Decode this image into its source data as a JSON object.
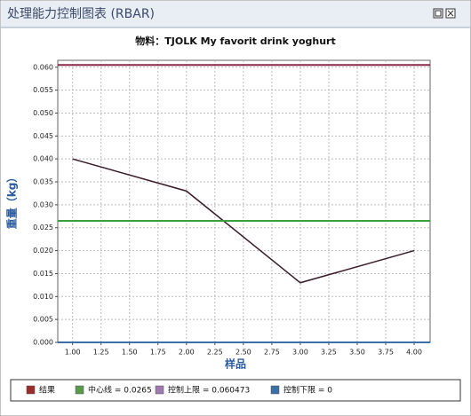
{
  "window_title": "处理能力控制图表 (RBAR)",
  "chart_data": {
    "type": "line",
    "title": "物料：TJOLK My favorit drink yoghurt",
    "x_label": "样品",
    "y_label": "重量（kg）",
    "x": [
      1,
      2,
      3,
      4
    ],
    "series": [
      {
        "name": "结果",
        "color": "#9b2c2c",
        "line_color": "#3a1a2a",
        "values": [
          0.04,
          0.033,
          0.013,
          0.02
        ]
      },
      {
        "name": "中心线 = 0.0265",
        "color": "#5a9a4a",
        "line_color": "#3aa03a",
        "value": 0.0265
      },
      {
        "name": "控制上限 = 0.060473",
        "color": "#a07ab0",
        "line_color": "#8a2a4a",
        "value": 0.060473
      },
      {
        "name": "控制下限 = 0",
        "color": "#3a6fa8",
        "line_color": "#3a6fa8",
        "value": 0
      }
    ],
    "xlim": [
      0.87,
      4.14
    ],
    "ylim": [
      0,
      0.0615
    ],
    "xticks": [
      {
        "value": 1,
        "label": "1.00"
      },
      {
        "value": 1.25,
        "label": "1.25"
      },
      {
        "value": 1.5,
        "label": "1.50"
      },
      {
        "value": 1.75,
        "label": "1.75"
      },
      {
        "value": 2,
        "label": "2.00"
      },
      {
        "value": 2.25,
        "label": "2.25"
      },
      {
        "value": 2.5,
        "label": "2.50"
      },
      {
        "value": 2.75,
        "label": "2.75"
      },
      {
        "value": 3,
        "label": "3.00"
      },
      {
        "value": 3.25,
        "label": "3.25"
      },
      {
        "value": 3.5,
        "label": "3.50"
      },
      {
        "value": 3.75,
        "label": "3.75"
      },
      {
        "value": 4,
        "label": "4.00"
      }
    ],
    "yticks": [
      {
        "value": 0,
        "label": "0.000"
      },
      {
        "value": 0.005,
        "label": "0.005"
      },
      {
        "value": 0.01,
        "label": "0.010"
      },
      {
        "value": 0.015,
        "label": "0.015"
      },
      {
        "value": 0.02,
        "label": "0.020"
      },
      {
        "value": 0.025,
        "label": "0.025"
      },
      {
        "value": 0.03,
        "label": "0.030"
      },
      {
        "value": 0.035,
        "label": "0.035"
      },
      {
        "value": 0.04,
        "label": "0.040"
      },
      {
        "value": 0.045,
        "label": "0.045"
      },
      {
        "value": 0.05,
        "label": "0.050"
      },
      {
        "value": 0.055,
        "label": "0.055"
      },
      {
        "value": 0.06,
        "label": "0.060"
      }
    ],
    "grid": true
  }
}
